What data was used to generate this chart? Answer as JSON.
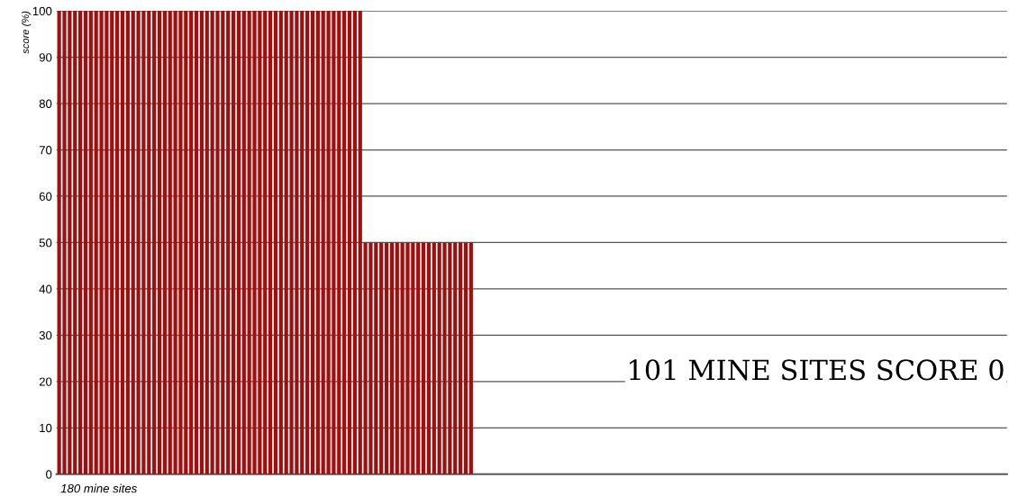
{
  "chart_data": {
    "type": "bar",
    "ylabel": "score (%)",
    "xlabel": "180 mine sites",
    "annotations": [
      "101 MINE SITES SCORE 0"
    ],
    "categories": [
      null,
      null,
      null,
      null,
      null,
      null,
      null,
      null,
      null,
      null,
      null,
      null,
      null,
      null,
      null,
      null,
      null,
      null,
      null,
      null,
      null,
      null,
      null,
      null,
      null,
      null,
      null,
      null,
      null,
      null,
      null,
      null,
      null,
      null,
      null,
      null,
      null,
      null,
      null,
      null,
      null,
      null,
      null,
      null,
      null,
      null,
      null,
      null,
      null,
      null,
      null,
      null,
      null,
      null,
      null,
      null,
      null,
      null,
      null,
      null,
      null,
      null,
      null,
      null,
      null,
      null,
      null,
      null,
      null,
      null,
      null,
      null,
      null,
      null,
      null,
      null,
      null,
      null,
      null,
      null,
      null,
      null,
      null,
      null,
      null,
      null,
      null,
      null,
      null,
      null,
      null,
      null,
      null,
      null,
      null,
      null,
      null,
      null,
      null,
      null,
      null,
      null,
      null,
      null,
      null,
      null,
      null,
      null,
      null,
      null,
      null,
      null,
      null,
      null,
      null,
      null,
      null,
      null,
      null,
      null,
      null,
      null,
      null,
      null,
      null,
      null,
      null,
      null,
      null,
      null,
      null,
      null,
      null,
      null,
      null,
      null,
      null,
      null,
      null,
      null,
      null,
      null,
      null,
      null,
      null,
      null,
      null,
      null,
      null,
      null,
      null,
      null,
      null,
      null,
      null,
      null,
      null,
      null,
      null,
      null,
      null,
      null,
      null,
      null,
      null,
      null,
      null,
      null,
      null,
      null,
      null,
      null,
      null,
      null,
      null,
      null,
      null,
      null,
      null,
      null
    ],
    "values": [
      100,
      100,
      100,
      100,
      100,
      100,
      100,
      100,
      100,
      100,
      100,
      100,
      100,
      100,
      100,
      100,
      100,
      100,
      100,
      100,
      100,
      100,
      100,
      100,
      100,
      100,
      100,
      100,
      100,
      100,
      100,
      100,
      100,
      100,
      100,
      100,
      100,
      100,
      100,
      100,
      100,
      100,
      100,
      100,
      100,
      100,
      100,
      100,
      100,
      100,
      100,
      100,
      100,
      100,
      100,
      100,
      100,
      100,
      50,
      50,
      50,
      50,
      50,
      50,
      50,
      50,
      50,
      50,
      50,
      50,
      50,
      50,
      50,
      50,
      50,
      50,
      50,
      50,
      50,
      0,
      0,
      0,
      0,
      0,
      0,
      0,
      0,
      0,
      0,
      0,
      0,
      0,
      0,
      0,
      0,
      0,
      0,
      0,
      0,
      0,
      0,
      0,
      0,
      0,
      0,
      0,
      0,
      0,
      0,
      0,
      0,
      0,
      0,
      0,
      0,
      0,
      0,
      0,
      0,
      0,
      0,
      0,
      0,
      0,
      0,
      0,
      0,
      0,
      0,
      0,
      0,
      0,
      0,
      0,
      0,
      0,
      0,
      0,
      0,
      0,
      0,
      0,
      0,
      0,
      0,
      0,
      0,
      0,
      0,
      0,
      0,
      0,
      0,
      0,
      0,
      0,
      0,
      0,
      0,
      0,
      0,
      0,
      0,
      0,
      0,
      0,
      0,
      0,
      0,
      0,
      0,
      0,
      0,
      0,
      0,
      0,
      0,
      0,
      0,
      0
    ],
    "color": "#a50d0d",
    "ylim": [
      0,
      100
    ],
    "yticks": [
      0,
      10,
      20,
      30,
      40,
      50,
      60,
      70,
      80,
      90,
      100
    ],
    "grid": "y",
    "tick_labels": "y"
  }
}
